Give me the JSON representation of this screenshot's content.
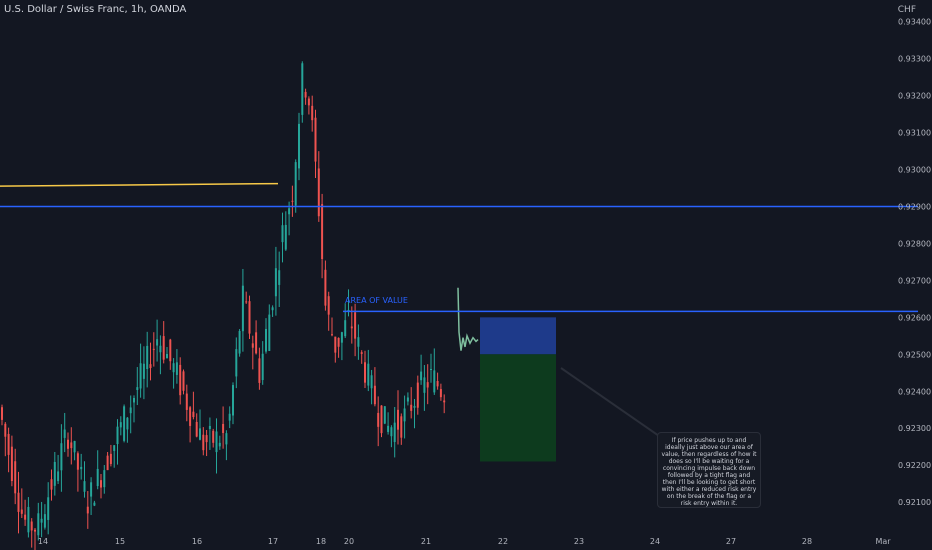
{
  "title": "U.S. Dollar / Swiss Franc, 1h, OANDA",
  "currency": "CHF",
  "chart_data": {
    "type": "candlestick",
    "symbol": "USDCHF",
    "interval": "1h",
    "ylim": [
      0.9203,
      0.9341
    ],
    "y_ticks": [
      "0.93400",
      "0.93300",
      "0.93200",
      "0.93100",
      "0.93000",
      "0.92900",
      "0.92800",
      "0.92700",
      "0.92600",
      "0.92500",
      "0.92400",
      "0.92300",
      "0.92200",
      "0.92100"
    ],
    "y_tick_values": [
      0.934,
      0.933,
      0.932,
      0.931,
      0.93,
      0.929,
      0.928,
      0.927,
      0.926,
      0.925,
      0.924,
      0.923,
      0.922,
      0.921
    ],
    "x_ticks": [
      "14",
      "15",
      "16",
      "17",
      "18",
      "20",
      "21",
      "22",
      "23",
      "24",
      "27",
      "28",
      "Mar"
    ],
    "horizontal_lines": [
      {
        "name": "resistance",
        "price": 0.929,
        "color": "#2962ff"
      },
      {
        "name": "area-of-value",
        "price": 0.92616,
        "color": "#2962ff",
        "label": "AREA OF VALUE"
      }
    ],
    "trend_line": {
      "color": "#f7c948",
      "from": 0.92955,
      "to": 0.92962
    },
    "position": {
      "entry": 0.925,
      "stop": 0.926,
      "target": 0.9221,
      "risk_color": "#1e3a8a",
      "reward_color": "#0d3b1e"
    },
    "up_color": "#26a69a",
    "down_color": "#ef5350",
    "projection_color": "#7fbf9f"
  },
  "note": "If price pushes up to and ideally just above our area of value, then regardless of how it does so I'll be waiting for a convincing impulse back down followed by a tight flag and then I'll be looking to get short with either a reduced risk entry on the break of the flag or a risk entry within it."
}
